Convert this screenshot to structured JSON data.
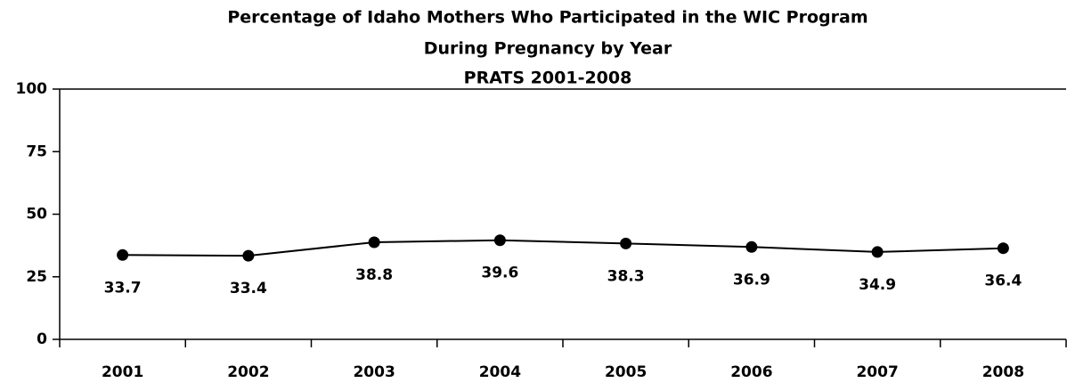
{
  "chart_data": {
    "type": "line",
    "title": [
      "Percentage of Idaho Mothers Who Participated in the WIC Program",
      "During Pregnancy by Year"
    ],
    "subtitle": "PRATS 2001-2008",
    "categories": [
      "2001",
      "2002",
      "2003",
      "2004",
      "2005",
      "2006",
      "2007",
      "2008"
    ],
    "values": [
      33.7,
      33.4,
      38.8,
      39.6,
      38.3,
      36.9,
      34.9,
      36.4
    ],
    "color": "#000000",
    "ylim": [
      0,
      100
    ],
    "yticks": [
      0,
      25,
      50,
      75,
      100
    ],
    "grid": false
  }
}
